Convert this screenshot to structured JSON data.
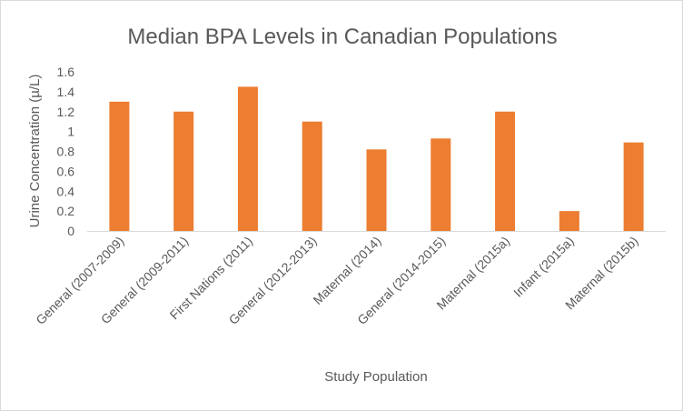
{
  "chart_data": {
    "type": "bar",
    "title": "Median BPA Levels in Canadian Populations",
    "xlabel": "Study Population",
    "ylabel": "Urine Concentration (µ/L)",
    "ylim": [
      0,
      1.6
    ],
    "yticks": [
      "0",
      "0.2",
      "0.4",
      "0.6",
      "0.8",
      "1",
      "1.2",
      "1.4",
      "1.6"
    ],
    "grid": false,
    "legend": "none",
    "bar_color": "#ED7D31",
    "categories": [
      "General (2007-2009)",
      "General (2009-2011)",
      "First Nations (2011)",
      "General (2012-2013)",
      "Maternal (2014)",
      "General (2014-2015)",
      "Maternal (2015a)",
      "Infant (2015a)",
      "Maternal (2015b)"
    ],
    "values": [
      1.3,
      1.2,
      1.45,
      1.1,
      0.82,
      0.93,
      1.2,
      0.2,
      0.89
    ]
  }
}
